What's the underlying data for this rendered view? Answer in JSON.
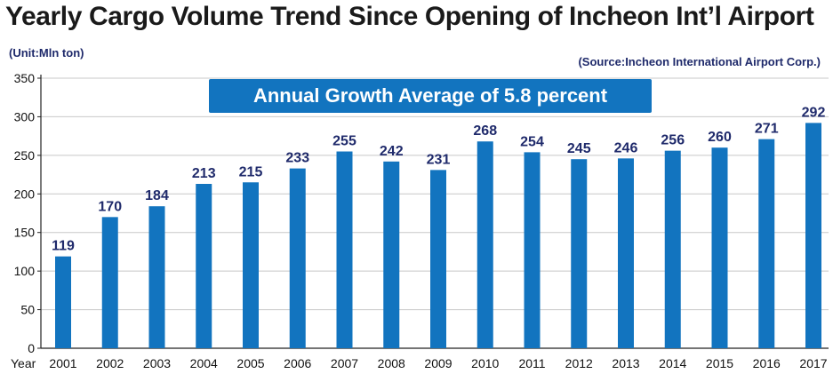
{
  "header": {
    "title": "Yearly Cargo Volume Trend Since Opening of Incheon Int’l Airport",
    "unit": "(Unit:Mln ton)",
    "source": "(Source:Incheon International Airport Corp.)",
    "banner": "Annual Growth Average of 5.8 percent"
  },
  "colors": {
    "bar": "#1274bf",
    "banner": "#1274bf",
    "label": "#1f2a6b",
    "grid": "#c8c8c8"
  },
  "chart_data": {
    "type": "bar",
    "title": "Yearly Cargo Volume Trend Since Opening of Incheon Int’l Airport",
    "xlabel": "Year",
    "ylabel": "(Unit:Mln ton)",
    "ylim": [
      0,
      350
    ],
    "yticks": [
      0,
      50,
      100,
      150,
      200,
      250,
      300,
      350
    ],
    "grid": true,
    "categories": [
      "2001",
      "2002",
      "2003",
      "2004",
      "2005",
      "2006",
      "2007",
      "2008",
      "2009",
      "2010",
      "2011",
      "2012",
      "2013",
      "2014",
      "2015",
      "2016",
      "2017"
    ],
    "values": [
      119,
      170,
      184,
      213,
      215,
      233,
      255,
      242,
      231,
      268,
      254,
      245,
      246,
      256,
      260,
      271,
      292
    ]
  }
}
